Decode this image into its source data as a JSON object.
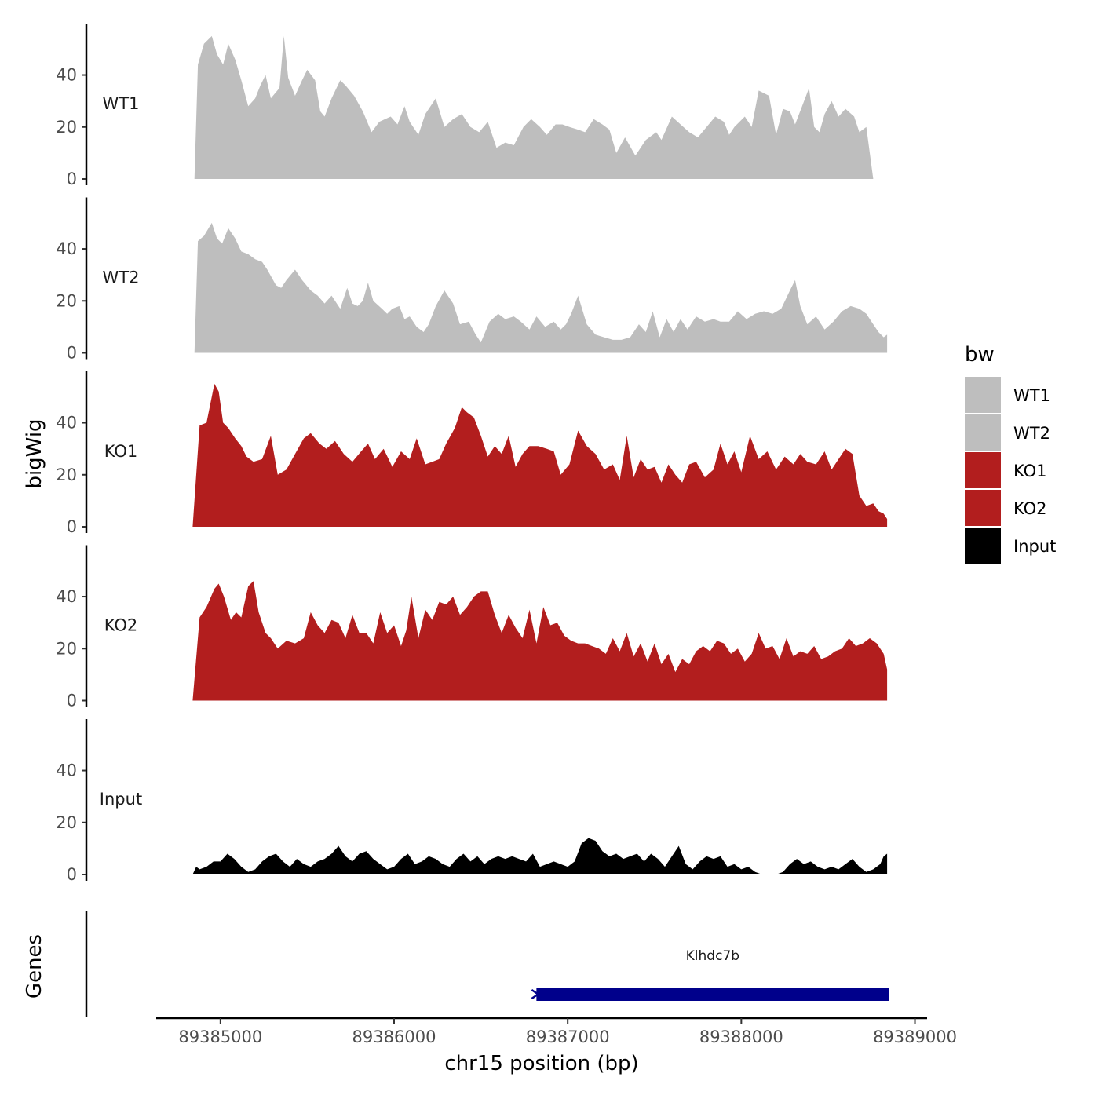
{
  "chart_data": {
    "type": "area",
    "ylabel": "bigWig",
    "xlabel": "chr15 position (bp)",
    "xlim": [
      89384630,
      89389070
    ],
    "ylim": [
      0,
      58
    ],
    "y_ticks": [
      0,
      20,
      40
    ],
    "y_tick_labels": [
      "0",
      "20",
      "40"
    ],
    "x_ticks": [
      89385000,
      89386000,
      89387000,
      89388000,
      89389000
    ],
    "x_tick_labels": [
      "89385000",
      "89386000",
      "89387000",
      "89388000",
      "89389000"
    ],
    "legend": {
      "title": "bw",
      "position": "right",
      "items": [
        {
          "label": "WT1",
          "color": "#bebebe"
        },
        {
          "label": "WT2",
          "color": "#bebebe"
        },
        {
          "label": "KO1",
          "color": "#b21e1e"
        },
        {
          "label": "KO2",
          "color": "#b21e1e"
        },
        {
          "label": "Input",
          "color": "#000000"
        }
      ]
    },
    "series": [
      {
        "name": "WT1",
        "color": "#bebebe",
        "x": [
          89384850,
          89384870,
          89384905,
          89384950,
          89384980,
          89385015,
          89385045,
          89385085,
          89385120,
          89385160,
          89385200,
          89385230,
          89385260,
          89385290,
          89385340,
          89385365,
          89385390,
          89385430,
          89385470,
          89385500,
          89385545,
          89385575,
          89385600,
          89385640,
          89385690,
          89385720,
          89385770,
          89385820,
          89385870,
          89385915,
          89385980,
          89386020,
          89386060,
          89386090,
          89386140,
          89386180,
          89386240,
          89386290,
          89386340,
          89386390,
          89386440,
          89386490,
          89386540,
          89386590,
          89386640,
          89386690,
          89386745,
          89386790,
          89386840,
          89386880,
          89386930,
          89386970,
          89387010,
          89387060,
          89387100,
          89387150,
          89387200,
          89387240,
          89387280,
          89387330,
          89387390,
          89387450,
          89387510,
          89387540,
          89387600,
          89387650,
          89387700,
          89387750,
          89387800,
          89387850,
          89387900,
          89387930,
          89387960,
          89388020,
          89388060,
          89388100,
          89388160,
          89388200,
          89388240,
          89388280,
          89388310,
          89388350,
          89388390,
          89388420,
          89388450,
          89388480,
          89388520,
          89388560,
          89388600,
          89388650,
          89388680,
          89388720,
          89388760,
          89388780,
          89388800,
          89388830,
          89388850
        ],
        "values": [
          0,
          44,
          52,
          55,
          48,
          44,
          52,
          46,
          38,
          28,
          31,
          36,
          40,
          31,
          35,
          55,
          39,
          32,
          38,
          42,
          38,
          26,
          24,
          31,
          38,
          36,
          32,
          26,
          18,
          22,
          24,
          21,
          28,
          22,
          17,
          25,
          31,
          20,
          23,
          25,
          20,
          18,
          22,
          12,
          14,
          13,
          20,
          23,
          20,
          17,
          21,
          21,
          20,
          19,
          18,
          23,
          21,
          19,
          10,
          16,
          9,
          15,
          18,
          15,
          24,
          21,
          18,
          16,
          20,
          24,
          22,
          17,
          20,
          24,
          20,
          34,
          32,
          17,
          27,
          26,
          21,
          28,
          35,
          20,
          18,
          25,
          30,
          24,
          27,
          24,
          18,
          20,
          0,
          0,
          0,
          0,
          0
        ]
      },
      {
        "name": "WT2",
        "color": "#bebebe",
        "x": [
          89384850,
          89384870,
          89384905,
          89384950,
          89384980,
          89385010,
          89385045,
          89385085,
          89385120,
          89385160,
          89385200,
          89385240,
          89385270,
          89385320,
          89385350,
          89385380,
          89385430,
          89385470,
          89385520,
          89385560,
          89385600,
          89385640,
          89385690,
          89385730,
          89385760,
          89385790,
          89385820,
          89385850,
          89385880,
          89385930,
          89385960,
          89385990,
          89386030,
          89386060,
          89386090,
          89386130,
          89386170,
          89386200,
          89386240,
          89386290,
          89386340,
          89386380,
          89386430,
          89386470,
          89386500,
          89386550,
          89386600,
          89386640,
          89386690,
          89386730,
          89386780,
          89386820,
          89386870,
          89386920,
          89386960,
          89386990,
          89387020,
          89387060,
          89387110,
          89387160,
          89387210,
          89387260,
          89387310,
          89387360,
          89387410,
          89387450,
          89387490,
          89387530,
          89387570,
          89387610,
          89387650,
          89387690,
          89387740,
          89387790,
          89387840,
          89387880,
          89387930,
          89387980,
          89388030,
          89388080,
          89388130,
          89388180,
          89388230,
          89388280,
          89388310,
          89388340,
          89388380,
          89388430,
          89388480,
          89388530,
          89388580,
          89388630,
          89388680,
          89388720,
          89388760,
          89388790,
          89388820,
          89388840
        ],
        "values": [
          0,
          43,
          45,
          50,
          44,
          42,
          48,
          44,
          39,
          38,
          36,
          35,
          32,
          26,
          25,
          28,
          32,
          28,
          24,
          22,
          19,
          22,
          17,
          25,
          19,
          18,
          20,
          27,
          20,
          17,
          15,
          17,
          18,
          13,
          14,
          10,
          8,
          11,
          18,
          24,
          19,
          11,
          12,
          7,
          4,
          12,
          15,
          13,
          14,
          12,
          9,
          14,
          10,
          12,
          9,
          11,
          15,
          22,
          11,
          7,
          6,
          5,
          5,
          6,
          11,
          8,
          16,
          6,
          13,
          8,
          13,
          9,
          14,
          12,
          13,
          12,
          12,
          16,
          13,
          15,
          16,
          15,
          17,
          24,
          28,
          18,
          11,
          14,
          9,
          12,
          16,
          18,
          17,
          15,
          11,
          8,
          6,
          7
        ]
      },
      {
        "name": "KO1",
        "color": "#b21e1e",
        "x": [
          89384840,
          89384880,
          89384920,
          89384965,
          89384990,
          89385015,
          89385045,
          89385085,
          89385120,
          89385150,
          89385190,
          89385240,
          89385290,
          89385330,
          89385380,
          89385430,
          89385480,
          89385520,
          89385570,
          89385610,
          89385660,
          89385710,
          89385760,
          89385810,
          89385850,
          89385890,
          89385940,
          89385990,
          89386040,
          89386090,
          89386130,
          89386180,
          89386220,
          89386260,
          89386300,
          89386350,
          89386390,
          89386420,
          89386460,
          89386500,
          89386540,
          89386580,
          89386620,
          89386660,
          89386700,
          89386740,
          89386780,
          89386830,
          89386880,
          89386920,
          89386960,
          89387010,
          89387060,
          89387110,
          89387160,
          89387210,
          89387260,
          89387300,
          89387340,
          89387380,
          89387420,
          89387460,
          89387500,
          89387540,
          89387580,
          89387620,
          89387660,
          89387700,
          89387740,
          89387790,
          89387840,
          89387880,
          89387920,
          89387960,
          89388000,
          89388050,
          89388100,
          89388150,
          89388200,
          89388250,
          89388300,
          89388340,
          89388380,
          89388430,
          89388480,
          89388520,
          89388560,
          89388600,
          89388640,
          89388680,
          89388720,
          89388760,
          89388790,
          89388820,
          89388840
        ],
        "values": [
          0,
          39,
          40,
          55,
          52,
          40,
          38,
          34,
          31,
          27,
          25,
          26,
          35,
          20,
          22,
          28,
          34,
          36,
          32,
          30,
          33,
          28,
          25,
          29,
          32,
          26,
          30,
          23,
          29,
          26,
          34,
          24,
          25,
          26,
          32,
          38,
          46,
          44,
          42,
          35,
          27,
          31,
          28,
          35,
          23,
          28,
          31,
          31,
          30,
          29,
          20,
          24,
          37,
          31,
          28,
          22,
          24,
          18,
          35,
          19,
          26,
          22,
          23,
          17,
          24,
          20,
          17,
          24,
          25,
          19,
          22,
          32,
          24,
          29,
          21,
          35,
          26,
          29,
          22,
          27,
          24,
          28,
          25,
          24,
          29,
          22,
          26,
          30,
          28,
          12,
          8,
          9,
          6,
          5,
          3
        ]
      },
      {
        "name": "KO2",
        "color": "#b21e1e",
        "x": [
          89384840,
          89384880,
          89384920,
          89384965,
          89384990,
          89385020,
          89385060,
          89385090,
          89385120,
          89385160,
          89385190,
          89385220,
          89385260,
          89385290,
          89385330,
          89385380,
          89385430,
          89385480,
          89385520,
          89385560,
          89385600,
          89385640,
          89385680,
          89385720,
          89385760,
          89385800,
          89385840,
          89385880,
          89385920,
          89385960,
          89386000,
          89386040,
          89386070,
          89386100,
          89386140,
          89386180,
          89386220,
          89386260,
          89386300,
          89386340,
          89386380,
          89386420,
          89386460,
          89386500,
          89386540,
          89386580,
          89386620,
          89386660,
          89386700,
          89386740,
          89386780,
          89386820,
          89386860,
          89386900,
          89386940,
          89386980,
          89387020,
          89387060,
          89387100,
          89387140,
          89387180,
          89387220,
          89387260,
          89387300,
          89387340,
          89387380,
          89387420,
          89387460,
          89387500,
          89387540,
          89387580,
          89387620,
          89387660,
          89387700,
          89387740,
          89387780,
          89387820,
          89387860,
          89387900,
          89387940,
          89387980,
          89388020,
          89388060,
          89388100,
          89388140,
          89388180,
          89388220,
          89388260,
          89388300,
          89388340,
          89388380,
          89388420,
          89388460,
          89388500,
          89388540,
          89388580,
          89388620,
          89388660,
          89388700,
          89388740,
          89388780,
          89388820,
          89388840
        ],
        "values": [
          0,
          32,
          36,
          43,
          45,
          40,
          31,
          34,
          32,
          44,
          46,
          34,
          26,
          24,
          20,
          23,
          22,
          24,
          34,
          29,
          26,
          31,
          30,
          24,
          33,
          26,
          26,
          22,
          34,
          26,
          29,
          21,
          27,
          40,
          24,
          35,
          31,
          38,
          37,
          40,
          33,
          36,
          40,
          42,
          42,
          33,
          26,
          33,
          28,
          24,
          35,
          22,
          36,
          29,
          30,
          25,
          23,
          22,
          22,
          21,
          20,
          18,
          24,
          19,
          26,
          17,
          22,
          15,
          22,
          14,
          18,
          11,
          16,
          14,
          19,
          21,
          19,
          23,
          22,
          18,
          20,
          15,
          18,
          26,
          20,
          21,
          16,
          24,
          17,
          19,
          18,
          21,
          16,
          17,
          19,
          20,
          24,
          21,
          22,
          24,
          22,
          18,
          12
        ]
      },
      {
        "name": "Input",
        "color": "#000000",
        "x": [
          89384840,
          89384860,
          89384880,
          89384920,
          89384960,
          89385000,
          89385040,
          89385080,
          89385120,
          89385160,
          89385200,
          89385240,
          89385280,
          89385320,
          89385360,
          89385400,
          89385440,
          89385480,
          89385520,
          89385560,
          89385600,
          89385640,
          89385680,
          89385720,
          89385760,
          89385800,
          89385840,
          89385880,
          89385920,
          89385960,
          89386000,
          89386040,
          89386080,
          89386120,
          89386160,
          89386200,
          89386240,
          89386280,
          89386320,
          89386360,
          89386400,
          89386440,
          89386480,
          89386520,
          89386560,
          89386600,
          89386640,
          89386680,
          89386720,
          89386760,
          89386800,
          89386840,
          89386880,
          89386920,
          89386960,
          89387000,
          89387040,
          89387080,
          89387120,
          89387160,
          89387200,
          89387240,
          89387280,
          89387320,
          89387360,
          89387400,
          89387440,
          89387480,
          89387520,
          89387560,
          89387600,
          89387640,
          89387680,
          89387720,
          89387760,
          89387800,
          89387840,
          89387880,
          89387920,
          89387960,
          89388000,
          89388040,
          89388080,
          89388120,
          89388160,
          89388200,
          89388240,
          89388280,
          89388320,
          89388360,
          89388400,
          89388440,
          89388480,
          89388520,
          89388560,
          89388600,
          89388640,
          89388680,
          89388720,
          89388760,
          89388800,
          89388820,
          89388840
        ],
        "values": [
          0,
          3,
          2,
          3,
          5,
          5,
          8,
          6,
          3,
          1,
          2,
          5,
          7,
          8,
          5,
          3,
          6,
          4,
          3,
          5,
          6,
          8,
          11,
          7,
          5,
          8,
          9,
          6,
          4,
          2,
          3,
          6,
          8,
          4,
          5,
          7,
          6,
          4,
          3,
          6,
          8,
          5,
          7,
          4,
          6,
          7,
          6,
          7,
          6,
          5,
          8,
          3,
          4,
          5,
          4,
          3,
          5,
          12,
          14,
          13,
          9,
          7,
          8,
          6,
          7,
          8,
          5,
          8,
          6,
          3,
          7,
          11,
          4,
          2,
          5,
          7,
          6,
          7,
          3,
          4,
          2,
          3,
          1,
          0,
          0,
          0,
          1,
          4,
          6,
          4,
          5,
          3,
          2,
          3,
          2,
          4,
          6,
          3,
          1,
          2,
          4,
          7,
          8
        ]
      }
    ],
    "gene_track": {
      "ylabel": "Genes",
      "genes": [
        {
          "name": "Klhdc7b",
          "start": 89386820,
          "end": 89388850,
          "strand": "+",
          "color": "#00008b"
        }
      ]
    }
  }
}
